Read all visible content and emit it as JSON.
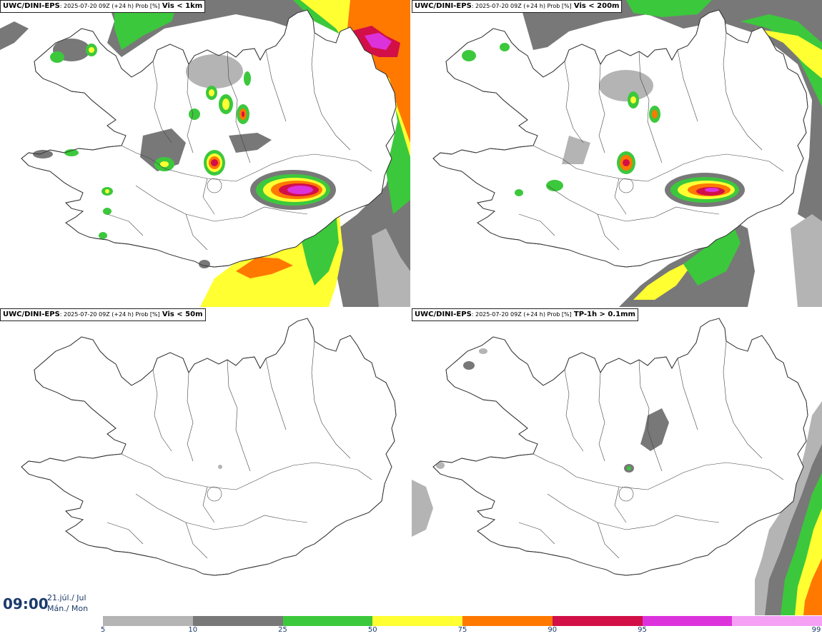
{
  "panels": [
    {
      "model": "UWC/DINI-EPS",
      "meta": ": 2025-07-20 09Z (+24 h) Prob [%]",
      "variable": "Vis < 1km"
    },
    {
      "model": "UWC/DINI-EPS",
      "meta": ": 2025-07-20 09Z (+24 h) Prob [%]",
      "variable": "Vis < 200m"
    },
    {
      "model": "UWC/DINI-EPS",
      "meta": ": 2025-07-20 09Z (+24 h) Prob [%]",
      "variable": "Vis < 50m"
    },
    {
      "model": "UWC/DINI-EPS",
      "meta": ": 2025-07-20 09Z (+24 h) Prob [%]",
      "variable": "TP-1h > 0.1mm"
    }
  ],
  "time": {
    "clock": "09:00",
    "date": "21.júl./ Jul",
    "weekday": "Mán./ Mon"
  },
  "colorbar": {
    "ticks": [
      "5",
      "10",
      "25",
      "50",
      "75",
      "90",
      "95",
      "99"
    ],
    "colors": [
      "#b4b4b4",
      "#787878",
      "#3cc83c",
      "#ffff32",
      "#ff7800",
      "#d20f46",
      "#dc32dc",
      "#f5a0f5"
    ]
  }
}
